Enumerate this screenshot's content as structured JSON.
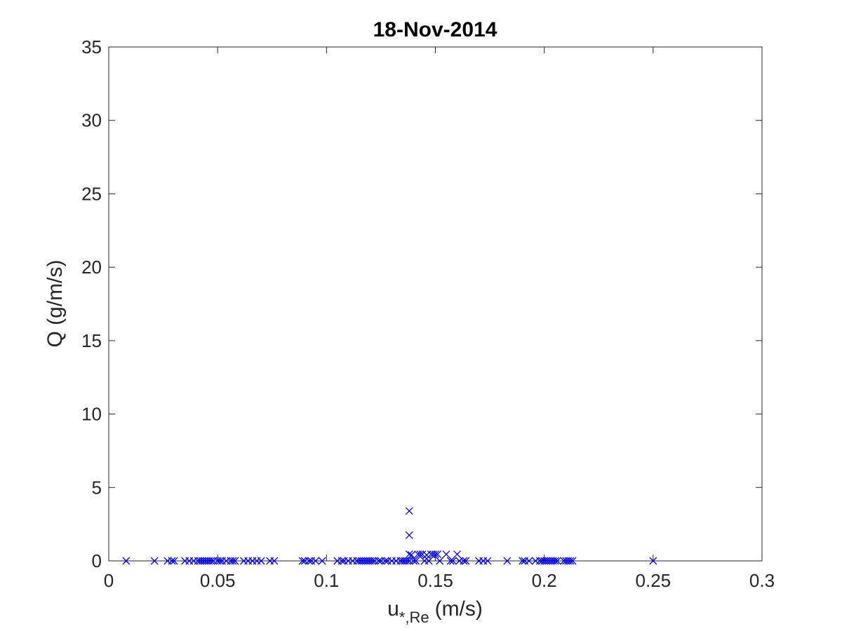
{
  "chart_data": {
    "type": "scatter",
    "title": "18-Nov-2014",
    "xlabel": {
      "base": "u",
      "sub": "*,Re",
      "unit": "(m/s)"
    },
    "ylabel": "Q (g/m/s)",
    "xlim": [
      0,
      0.3
    ],
    "ylim": [
      0,
      35
    ],
    "xticks": [
      0,
      0.05,
      0.1,
      0.15,
      0.2,
      0.25,
      0.3
    ],
    "xtick_labels": [
      "0",
      "0.05",
      "0.1",
      "0.15",
      "0.2",
      "0.25",
      "0.3"
    ],
    "yticks": [
      0,
      5,
      10,
      15,
      20,
      25,
      30,
      35
    ],
    "ytick_labels": [
      "0",
      "5",
      "10",
      "15",
      "20",
      "25",
      "30",
      "35"
    ],
    "grid": false,
    "marker": "x",
    "color": "#0000ff",
    "series": [
      {
        "points": [
          [
            0.008,
            0
          ],
          [
            0.021,
            0
          ],
          [
            0.027,
            0
          ],
          [
            0.029,
            0
          ],
          [
            0.03,
            0
          ],
          [
            0.035,
            0
          ],
          [
            0.037,
            0
          ],
          [
            0.039,
            0
          ],
          [
            0.041,
            0
          ],
          [
            0.042,
            0
          ],
          [
            0.043,
            0
          ],
          [
            0.044,
            0
          ],
          [
            0.045,
            0
          ],
          [
            0.046,
            0
          ],
          [
            0.047,
            0
          ],
          [
            0.048,
            0
          ],
          [
            0.05,
            0
          ],
          [
            0.051,
            0
          ],
          [
            0.052,
            0
          ],
          [
            0.054,
            0
          ],
          [
            0.056,
            0
          ],
          [
            0.057,
            0
          ],
          [
            0.058,
            0
          ],
          [
            0.062,
            0
          ],
          [
            0.064,
            0
          ],
          [
            0.066,
            0
          ],
          [
            0.068,
            0
          ],
          [
            0.07,
            0
          ],
          [
            0.074,
            0
          ],
          [
            0.076,
            0
          ],
          [
            0.089,
            0
          ],
          [
            0.09,
            0
          ],
          [
            0.092,
            0
          ],
          [
            0.093,
            0
          ],
          [
            0.095,
            0
          ],
          [
            0.098,
            0
          ],
          [
            0.105,
            0
          ],
          [
            0.107,
            0
          ],
          [
            0.108,
            0
          ],
          [
            0.11,
            0
          ],
          [
            0.112,
            0
          ],
          [
            0.114,
            0
          ],
          [
            0.115,
            0
          ],
          [
            0.116,
            0
          ],
          [
            0.117,
            0
          ],
          [
            0.118,
            0
          ],
          [
            0.119,
            0
          ],
          [
            0.12,
            0
          ],
          [
            0.121,
            0
          ],
          [
            0.122,
            0
          ],
          [
            0.124,
            0
          ],
          [
            0.125,
            0
          ],
          [
            0.127,
            0
          ],
          [
            0.128,
            0
          ],
          [
            0.13,
            0
          ],
          [
            0.132,
            0
          ],
          [
            0.134,
            0
          ],
          [
            0.135,
            0
          ],
          [
            0.136,
            0
          ],
          [
            0.137,
            0
          ],
          [
            0.138,
            0
          ],
          [
            0.138,
            3.4
          ],
          [
            0.138,
            1.75
          ],
          [
            0.138,
            0.45
          ],
          [
            0.139,
            0.4
          ],
          [
            0.14,
            0
          ],
          [
            0.141,
            0
          ],
          [
            0.142,
            0.45
          ],
          [
            0.143,
            0.45
          ],
          [
            0.144,
            0.45
          ],
          [
            0.145,
            0
          ],
          [
            0.146,
            0.4
          ],
          [
            0.147,
            0
          ],
          [
            0.148,
            0.45
          ],
          [
            0.149,
            0.45
          ],
          [
            0.15,
            0.45
          ],
          [
            0.151,
            0.45
          ],
          [
            0.152,
            0
          ],
          [
            0.155,
            0.45
          ],
          [
            0.157,
            0
          ],
          [
            0.158,
            0
          ],
          [
            0.16,
            0.45
          ],
          [
            0.161,
            0
          ],
          [
            0.163,
            0
          ],
          [
            0.164,
            0
          ],
          [
            0.17,
            0
          ],
          [
            0.172,
            0
          ],
          [
            0.174,
            0
          ],
          [
            0.183,
            0
          ],
          [
            0.19,
            0
          ],
          [
            0.191,
            0
          ],
          [
            0.193,
            0
          ],
          [
            0.196,
            0
          ],
          [
            0.198,
            0
          ],
          [
            0.199,
            0
          ],
          [
            0.2,
            0
          ],
          [
            0.201,
            0
          ],
          [
            0.202,
            0
          ],
          [
            0.203,
            0
          ],
          [
            0.204,
            0
          ],
          [
            0.205,
            0
          ],
          [
            0.206,
            0
          ],
          [
            0.209,
            0
          ],
          [
            0.21,
            0
          ],
          [
            0.211,
            0
          ],
          [
            0.212,
            0
          ],
          [
            0.213,
            0
          ],
          [
            0.25,
            0
          ]
        ]
      }
    ]
  }
}
